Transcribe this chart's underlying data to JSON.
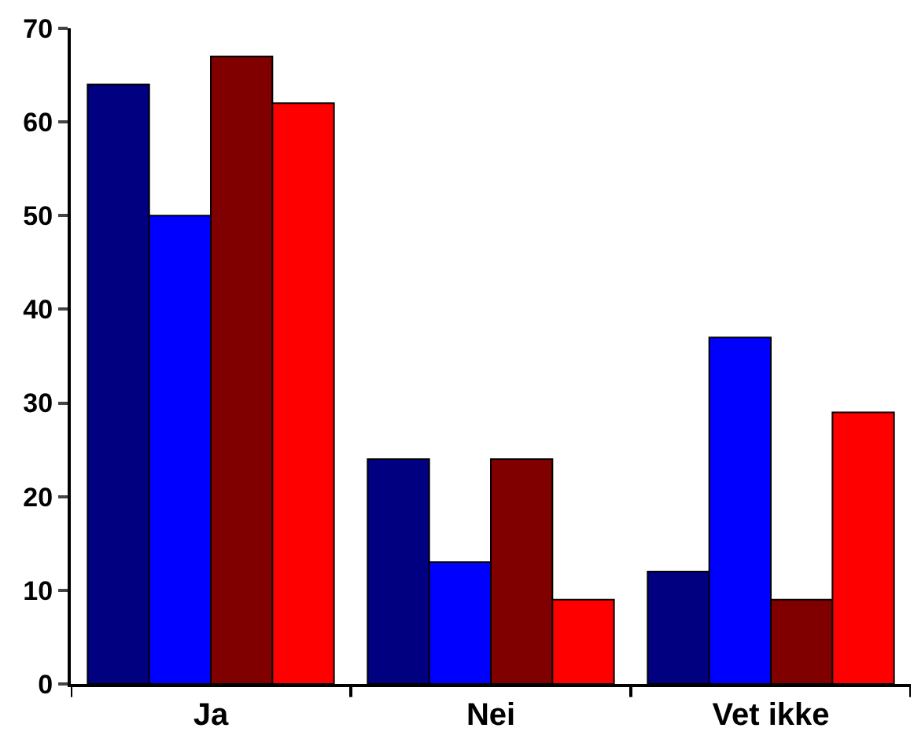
{
  "chart_data": {
    "type": "bar",
    "categories": [
      "Ja",
      "Nei",
      "Vet ikke"
    ],
    "series": [
      {
        "color": "#000080",
        "values": [
          64,
          24,
          12
        ]
      },
      {
        "color": "#0000ff",
        "values": [
          50,
          13,
          37
        ]
      },
      {
        "color": "#800000",
        "values": [
          67,
          24,
          9
        ]
      },
      {
        "color": "#ff0000",
        "values": [
          62,
          9,
          29
        ]
      }
    ],
    "ylim": [
      0,
      70
    ],
    "yticks": [
      0,
      10,
      20,
      30,
      40,
      50,
      60,
      70
    ]
  }
}
